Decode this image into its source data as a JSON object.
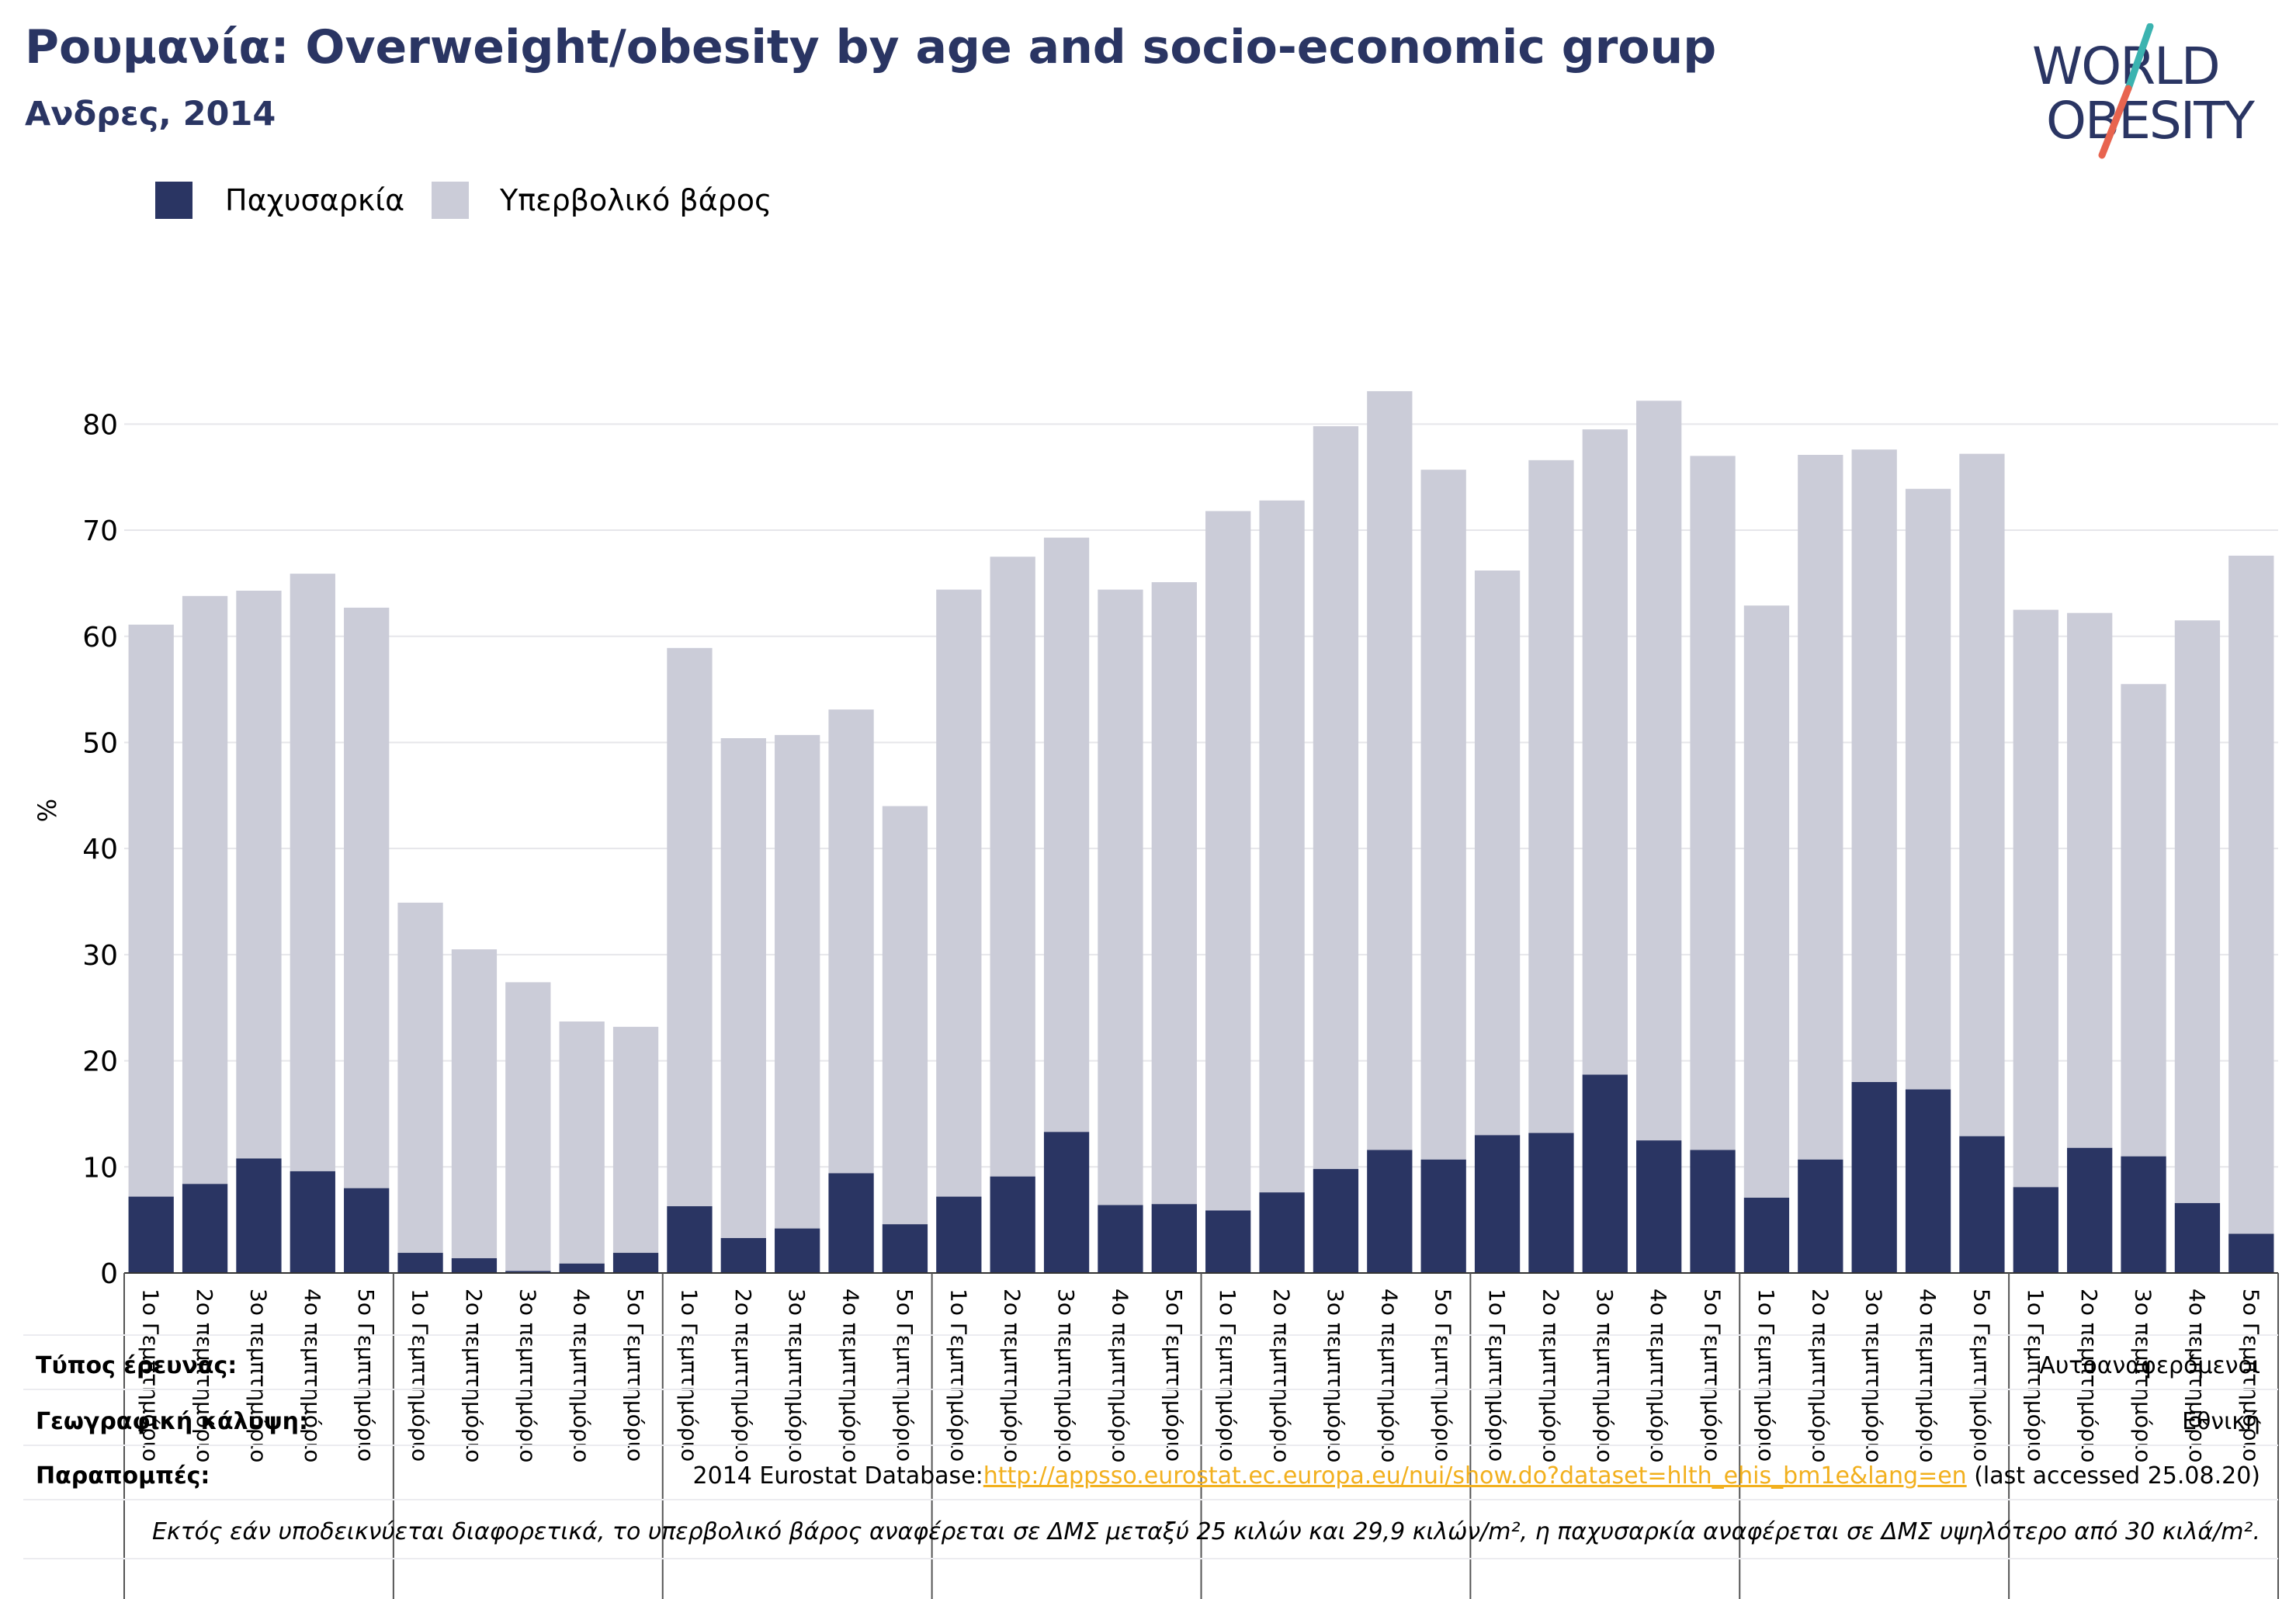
{
  "header": {
    "title": "Ρουμανία: Overweight/obesity by age and socio-economic group",
    "subtitle": "Ανδρες, 2014"
  },
  "logo": {
    "line1": "WORLD",
    "line2": "OBESITY"
  },
  "colors": {
    "obesity": "#2a3563",
    "overweight": "#cbccd8",
    "title": "#2a3563",
    "link": "#f2b01e",
    "logo_accent_teal": "#3bb3b0",
    "logo_accent_coral": "#e8644f"
  },
  "chart_data": {
    "type": "bar",
    "stacked": true,
    "ylabel": "%",
    "ylim": [
      0,
      85
    ],
    "yticks": [
      0,
      10,
      20,
      30,
      40,
      50,
      60,
      70,
      80
    ],
    "grid": true,
    "legend_position": "top-left",
    "categories": [
      "1ο Γεμπτημόριο",
      "2ο πεμπτημόριο",
      "3ο πεμπτημόριο",
      "4ο πεμπτημόριο",
      "5ο Γεμπτημόριο",
      "1ο Γεμπτημόριο",
      "2ο πεμπτημόριο",
      "3ο πεμπτημόριο",
      "4ο πεμπτημόριο",
      "5ο Γεμπτημόριο",
      "1ο Γεμπτημόριο",
      "2ο πεμπτημόριο",
      "3ο πεμπτημόριο",
      "4ο πεμπτημόριο",
      "5ο Γεμπτημόριο",
      "1ο Γεμπτημόριο",
      "2ο πεμπτημόριο",
      "3ο πεμπτημόριο",
      "4ο πεμπτημόριο",
      "5ο Γεμπτημόριο",
      "1ο Γεμπτημόριο",
      "2ο πεμπτημόριο",
      "3ο πεμπτημόριο",
      "4ο πεμπτημόριο",
      "5ο Γεμπτημόριο",
      "1ο Γεμπτημόριο",
      "2ο πεμπτημόριο",
      "3ο πεμπτημόριο",
      "4ο πεμπτημόριο",
      "5ο Γεμπτημόριο",
      "1ο Γεμπτημόριο",
      "2ο πεμπτημόριο",
      "3ο πεμπτημόριο",
      "4ο πεμπτημόριο",
      "5ο Γεμπτημόριο",
      "1ο Γεμπτημόριο",
      "2ο πεμπτημόριο",
      "3ο πεμπτημόριο",
      "4ο πεμπτημόριο",
      "5ο Γεμπτημόριο"
    ],
    "group_size": 5,
    "series": [
      {
        "name": "Παχυσαρκία",
        "values": [
          7.2,
          8.4,
          10.8,
          9.6,
          8.0,
          1.9,
          1.4,
          0.2,
          0.9,
          1.9,
          6.3,
          3.3,
          4.2,
          9.4,
          4.6,
          7.2,
          9.1,
          13.3,
          6.4,
          6.5,
          5.9,
          7.6,
          9.8,
          11.6,
          10.7,
          13.0,
          13.2,
          18.7,
          12.5,
          11.6,
          7.1,
          10.7,
          18.0,
          17.3,
          12.9,
          8.1,
          11.8,
          11.0,
          6.6,
          3.7
        ]
      },
      {
        "name": "Υπερβολικό βάρος",
        "values": [
          53.9,
          55.4,
          53.5,
          56.3,
          54.7,
          33.0,
          29.1,
          27.2,
          22.8,
          21.3,
          52.6,
          47.1,
          46.5,
          43.7,
          39.4,
          57.2,
          58.4,
          56.0,
          58.0,
          58.6,
          65.9,
          65.2,
          70.0,
          71.5,
          65.0,
          53.2,
          63.4,
          60.8,
          69.7,
          65.4,
          55.8,
          66.4,
          59.6,
          56.6,
          64.3,
          54.4,
          50.4,
          44.5,
          54.9,
          63.9
        ]
      }
    ]
  },
  "notes": {
    "survey_type_label": "Τύπος έρευνας:",
    "survey_type_value": "Αυτοαναφερόμενοι",
    "coverage_label": "Γεωγραφική κάλυψη:",
    "coverage_value": "Εθνική",
    "references_label": "Παραπομπές:",
    "reference_prefix": "2014 Eurostat Database:",
    "reference_link": "http://appsso.eurostat.ec.europa.eu/nui/show.do?dataset=hlth_ehis_bm1e&lang=en",
    "reference_suffix": " (last accessed 25.08.20)",
    "footnote": "Εκτός εάν υποδεικνύεται διαφορετικά, το υπερβολικό βάρος αναφέρεται σε ΔΜΣ μεταξύ 25 κιλών και 29,9 κιλών/m², η παχυσαρκία αναφέρεται σε ΔΜΣ υψηλότερο από 30 κιλά/m²."
  }
}
